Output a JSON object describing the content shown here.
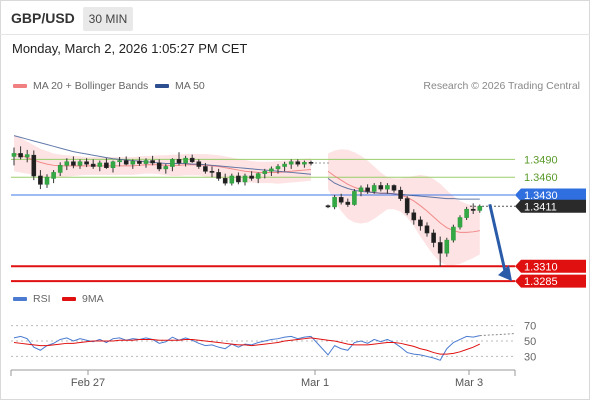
{
  "header": {
    "symbol": "GBP/USD",
    "timeframe": "30 MIN",
    "datetime": "Monday, March 2, 2026 1:05:27 PM CET"
  },
  "legend": {
    "ma20_label": "MA 20 + Bollinger Bands",
    "ma20_color": "#f08080",
    "ma50_label": "MA 50",
    "ma50_color": "#2d4f8f",
    "credit": "Research © 2026 Trading Central"
  },
  "rsi_legend": {
    "rsi_label": "RSI",
    "rsi_color": "#4a7bd0",
    "ma9_label": "9MA",
    "ma9_color": "#e01010"
  },
  "chart_data": [
    {
      "type": "candlestick",
      "title": "GBP/USD",
      "x_ticks": [
        "Feb 27",
        "Mar 1",
        "Mar 3"
      ],
      "y_levels": [
        {
          "label": "1.3490",
          "value": 1.349,
          "style": "green-line"
        },
        {
          "label": "1.3460",
          "value": 1.346,
          "style": "green-line"
        },
        {
          "label": "1.3430",
          "value": 1.343,
          "style": "blue-pivot"
        },
        {
          "label": "1.3411",
          "value": 1.3411,
          "style": "last-price"
        },
        {
          "label": "1.3310",
          "value": 1.331,
          "style": "red-target"
        },
        {
          "label": "1.3285",
          "value": 1.3285,
          "style": "red-target"
        }
      ],
      "ylim": [
        1.327,
        1.359
      ],
      "candles": [
        [
          1.3495,
          1.351,
          1.348,
          1.35
        ],
        [
          1.35,
          1.3512,
          1.349,
          1.3494
        ],
        [
          1.3494,
          1.3506,
          1.3485,
          1.3498
        ],
        [
          1.3497,
          1.3505,
          1.3455,
          1.3462
        ],
        [
          1.3462,
          1.3472,
          1.344,
          1.3448
        ],
        [
          1.3448,
          1.3465,
          1.3442,
          1.346
        ],
        [
          1.3458,
          1.3472,
          1.345,
          1.3468
        ],
        [
          1.3468,
          1.3485,
          1.3462,
          1.348
        ],
        [
          1.348,
          1.3492,
          1.3472,
          1.3486
        ],
        [
          1.3486,
          1.3495,
          1.3475,
          1.348
        ],
        [
          1.348,
          1.349,
          1.3474,
          1.3486
        ],
        [
          1.3486,
          1.3492,
          1.3477,
          1.3482
        ],
        [
          1.3482,
          1.349,
          1.3474,
          1.3478
        ],
        [
          1.3478,
          1.3488,
          1.347,
          1.3484
        ],
        [
          1.3484,
          1.3492,
          1.3474,
          1.3476
        ],
        [
          1.3476,
          1.3488,
          1.3468,
          1.3486
        ],
        [
          1.3486,
          1.3494,
          1.3478,
          1.3488
        ],
        [
          1.3488,
          1.3495,
          1.348,
          1.3482
        ],
        [
          1.3482,
          1.349,
          1.3474,
          1.3487
        ],
        [
          1.3487,
          1.3494,
          1.3479,
          1.3483
        ],
        [
          1.3483,
          1.3492,
          1.3476,
          1.3488
        ],
        [
          1.3488,
          1.3496,
          1.348,
          1.3484
        ],
        [
          1.3484,
          1.349,
          1.347,
          1.3474
        ],
        [
          1.3474,
          1.3482,
          1.3466,
          1.3478
        ],
        [
          1.3478,
          1.3492,
          1.347,
          1.349
        ],
        [
          1.349,
          1.3502,
          1.348,
          1.3484
        ],
        [
          1.3484,
          1.3496,
          1.3478,
          1.3492
        ],
        [
          1.3492,
          1.3498,
          1.3484,
          1.3486
        ],
        [
          1.3486,
          1.349,
          1.3474,
          1.3478
        ],
        [
          1.3478,
          1.3484,
          1.3466,
          1.347
        ],
        [
          1.347,
          1.3478,
          1.346,
          1.3468
        ],
        [
          1.3468,
          1.3474,
          1.3454,
          1.3458
        ],
        [
          1.3458,
          1.3466,
          1.3446,
          1.345
        ],
        [
          1.345,
          1.3466,
          1.3446,
          1.3462
        ],
        [
          1.3462,
          1.3468,
          1.3448,
          1.3452
        ],
        [
          1.3452,
          1.3466,
          1.3446,
          1.3462
        ],
        [
          1.3462,
          1.347,
          1.3454,
          1.3458
        ],
        [
          1.3458,
          1.3468,
          1.345,
          1.3466
        ],
        [
          1.3466,
          1.3474,
          1.3458,
          1.347
        ],
        [
          1.347,
          1.3478,
          1.3462,
          1.3474
        ],
        [
          1.3474,
          1.3482,
          1.3466,
          1.3478
        ],
        [
          1.3478,
          1.3486,
          1.347,
          1.3482
        ],
        [
          1.3482,
          1.349,
          1.3474,
          1.3486
        ],
        [
          1.3486,
          1.349,
          1.3478,
          1.3482
        ],
        [
          1.3482,
          1.3488,
          1.3476,
          1.3485
        ],
        [
          1.3485,
          1.3488,
          1.348,
          1.3484
        ],
        [
          1.3412,
          1.3414,
          1.3408,
          1.341
        ],
        [
          1.341,
          1.343,
          1.3406,
          1.3426
        ],
        [
          1.3426,
          1.3432,
          1.3414,
          1.3418
        ],
        [
          1.3418,
          1.3424,
          1.341,
          1.3414
        ],
        [
          1.3414,
          1.344,
          1.3412,
          1.3436
        ],
        [
          1.3436,
          1.3446,
          1.3428,
          1.3442
        ],
        [
          1.3442,
          1.3448,
          1.3432,
          1.3436
        ],
        [
          1.3436,
          1.345,
          1.3432,
          1.3446
        ],
        [
          1.3446,
          1.3452,
          1.3436,
          1.344
        ],
        [
          1.344,
          1.345,
          1.3432,
          1.3446
        ],
        [
          1.3446,
          1.3448,
          1.3434,
          1.3438
        ],
        [
          1.3438,
          1.3444,
          1.342,
          1.3424
        ],
        [
          1.3424,
          1.3428,
          1.3396,
          1.34
        ],
        [
          1.34,
          1.3406,
          1.338,
          1.3388
        ],
        [
          1.3388,
          1.3394,
          1.337,
          1.3378
        ],
        [
          1.3378,
          1.3384,
          1.336,
          1.3366
        ],
        [
          1.3366,
          1.3372,
          1.3342,
          1.335
        ],
        [
          1.335,
          1.336,
          1.331,
          1.3332
        ],
        [
          1.3332,
          1.3358,
          1.3326,
          1.3354
        ],
        [
          1.3354,
          1.338,
          1.335,
          1.3376
        ],
        [
          1.3376,
          1.3396,
          1.3372,
          1.3392
        ],
        [
          1.3392,
          1.341,
          1.3388,
          1.3406
        ],
        [
          1.3406,
          1.3416,
          1.3398,
          1.3404
        ],
        [
          1.3404,
          1.3414,
          1.34,
          1.3411
        ]
      ],
      "ma20": [
        1.35,
        1.3497,
        1.3493,
        1.3489,
        1.3485,
        1.3482,
        1.348,
        1.3479,
        1.3479,
        1.3479,
        1.3479,
        1.3479,
        1.3479,
        1.3479,
        1.3479,
        1.3479,
        1.3479,
        1.3479,
        1.3479,
        1.348,
        1.3481,
        1.3481,
        1.3481,
        1.348,
        1.348,
        1.348,
        1.3481,
        1.3481,
        1.3481,
        1.348,
        1.3479,
        1.3478,
        1.3476,
        1.3474,
        1.3472,
        1.347,
        1.3469,
        1.3468,
        1.3468,
        1.3468,
        1.3468,
        1.3469,
        1.347,
        1.3471,
        1.3472,
        1.3473,
        1.347,
        1.3462,
        1.3455,
        1.3448,
        1.3443,
        1.3439,
        1.3436,
        1.3434,
        1.3433,
        1.3433,
        1.3432,
        1.343,
        1.3426,
        1.342,
        1.3412,
        1.3403,
        1.3393,
        1.3383,
        1.3375,
        1.337,
        1.3367,
        1.3367,
        1.3368,
        1.337
      ],
      "bb_upper": [
        1.353,
        1.3526,
        1.352,
        1.3514,
        1.3508,
        1.3504,
        1.35,
        1.3498,
        1.3497,
        1.3496,
        1.3495,
        1.3494,
        1.3494,
        1.3494,
        1.3494,
        1.3494,
        1.3494,
        1.3494,
        1.3494,
        1.3495,
        1.3496,
        1.3496,
        1.3497,
        1.3497,
        1.3498,
        1.3498,
        1.3499,
        1.3499,
        1.3499,
        1.3499,
        1.3498,
        1.3497,
        1.3495,
        1.3493,
        1.3491,
        1.3489,
        1.3487,
        1.3486,
        1.3486,
        1.3486,
        1.3487,
        1.3488,
        1.3489,
        1.349,
        1.3491,
        1.3492,
        1.35,
        1.3505,
        1.3507,
        1.3506,
        1.3502,
        1.3496,
        1.3488,
        1.3478,
        1.3468,
        1.346,
        1.3458,
        1.3458,
        1.346,
        1.3462,
        1.3464,
        1.3462,
        1.3457,
        1.3449,
        1.3438,
        1.3428,
        1.342,
        1.3415,
        1.3412,
        1.341
      ],
      "bb_lower": [
        1.347,
        1.3468,
        1.3466,
        1.3464,
        1.3462,
        1.346,
        1.346,
        1.346,
        1.3461,
        1.3462,
        1.3463,
        1.3464,
        1.3464,
        1.3464,
        1.3464,
        1.3464,
        1.3464,
        1.3464,
        1.3464,
        1.3465,
        1.3466,
        1.3466,
        1.3465,
        1.3463,
        1.3462,
        1.3462,
        1.3463,
        1.3463,
        1.3463,
        1.3461,
        1.346,
        1.3459,
        1.3457,
        1.3455,
        1.3453,
        1.3451,
        1.3451,
        1.345,
        1.345,
        1.345,
        1.3449,
        1.345,
        1.3451,
        1.3452,
        1.3453,
        1.3454,
        1.344,
        1.3419,
        1.3403,
        1.339,
        1.3384,
        1.3382,
        1.3384,
        1.339,
        1.3398,
        1.3406,
        1.3406,
        1.3402,
        1.3392,
        1.3378,
        1.336,
        1.3344,
        1.3329,
        1.3317,
        1.3312,
        1.3312,
        1.3314,
        1.3319,
        1.3324,
        1.333
      ],
      "ma50": [
        1.353,
        1.3527,
        1.3524,
        1.3521,
        1.3518,
        1.3515,
        1.3512,
        1.3509,
        1.3506,
        1.3503,
        1.3501,
        1.3499,
        1.3497,
        1.3495,
        1.3493,
        1.3491,
        1.349,
        1.3489,
        1.3488,
        1.3487,
        1.3486,
        1.3485,
        1.3484,
        1.3483,
        1.3483,
        1.3483,
        1.3483,
        1.3482,
        1.3482,
        1.3481,
        1.348,
        1.3479,
        1.3478,
        1.3477,
        1.3476,
        1.3475,
        1.3474,
        1.3473,
        1.3472,
        1.3471,
        1.347,
        1.3469,
        1.3468,
        1.3467,
        1.3466,
        1.3465,
        1.3458,
        1.345,
        1.3445,
        1.3441,
        1.3438,
        1.3436,
        1.3435,
        1.3434,
        1.3433,
        1.3433,
        1.3432,
        1.3431,
        1.343,
        1.3429,
        1.3428,
        1.3427,
        1.3426,
        1.3425,
        1.3424,
        1.3424,
        1.3423,
        1.3423,
        1.3423,
        1.3423
      ],
      "target_arrow": {
        "from": 1.3411,
        "to": 1.3285
      }
    },
    {
      "type": "line",
      "title": "RSI",
      "y_ticks": [
        "70",
        "50",
        "30"
      ],
      "ylim": [
        15,
        85
      ],
      "series": [
        {
          "name": "RSI",
          "values": [
            54,
            56,
            53,
            42,
            38,
            44,
            47,
            52,
            54,
            50,
            53,
            51,
            49,
            52,
            48,
            53,
            54,
            51,
            53,
            52,
            54,
            52,
            47,
            49,
            55,
            51,
            54,
            51,
            47,
            44,
            45,
            42,
            40,
            46,
            42,
            46,
            45,
            48,
            50,
            52,
            53,
            55,
            56,
            53,
            55,
            56,
            32,
            44,
            40,
            38,
            48,
            50,
            47,
            52,
            49,
            52,
            48,
            42,
            35,
            33,
            32,
            30,
            28,
            25,
            40,
            48,
            52,
            56,
            55,
            57
          ]
        },
        {
          "name": "9MA",
          "values": [
            48,
            47,
            46,
            45,
            44,
            44,
            45,
            46,
            47,
            47,
            48,
            49,
            50,
            50,
            50,
            50,
            51,
            51,
            51,
            52,
            52,
            52,
            51,
            51,
            51,
            51,
            52,
            52,
            51,
            50,
            49,
            48,
            47,
            46,
            45,
            45,
            44,
            45,
            46,
            47,
            48,
            50,
            51,
            52,
            53,
            54,
            51,
            50,
            48,
            46,
            45,
            45,
            45,
            46,
            47,
            48,
            48,
            47,
            45,
            43,
            40,
            38,
            35,
            33,
            33,
            34,
            36,
            39,
            42,
            46
          ]
        }
      ]
    }
  ]
}
